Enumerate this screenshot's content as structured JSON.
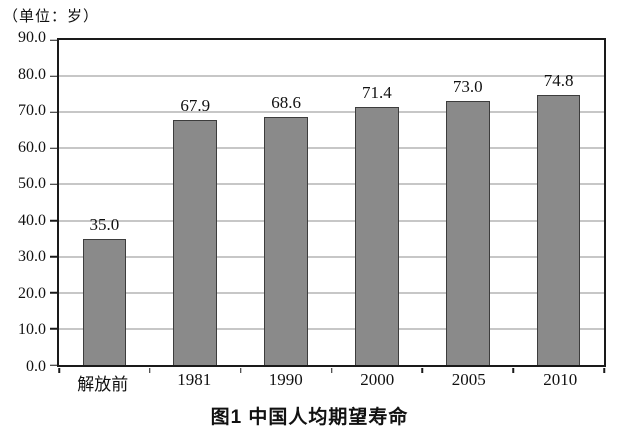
{
  "unit_label": "（单位：岁）",
  "chart_data": {
    "type": "bar",
    "categories": [
      "解放前",
      "1981",
      "1990",
      "2000",
      "2005",
      "2010"
    ],
    "values": [
      35.0,
      67.9,
      68.6,
      71.4,
      73.0,
      74.8
    ],
    "value_labels": [
      "35.0",
      "67.9",
      "68.6",
      "71.4",
      "73.0",
      "74.8"
    ],
    "title": "图1  中国人均期望寿命",
    "unit": "（单位：岁）",
    "xlabel": "",
    "ylabel": "",
    "ylim": [
      0,
      90
    ],
    "ytick_step": 10,
    "ytick_labels": [
      "0.0",
      "10.0",
      "20.0",
      "30.0",
      "40.0",
      "50.0",
      "60.0",
      "70.0",
      "80.0",
      "90.0"
    ],
    "grid": true,
    "legend": "none",
    "colors": {
      "bar_fill": "#8a8a8a",
      "bar_border": "#3d3d3d",
      "gridline": "#8f8f8f",
      "axis": "#1a1a1a",
      "background": "#ffffff"
    }
  }
}
